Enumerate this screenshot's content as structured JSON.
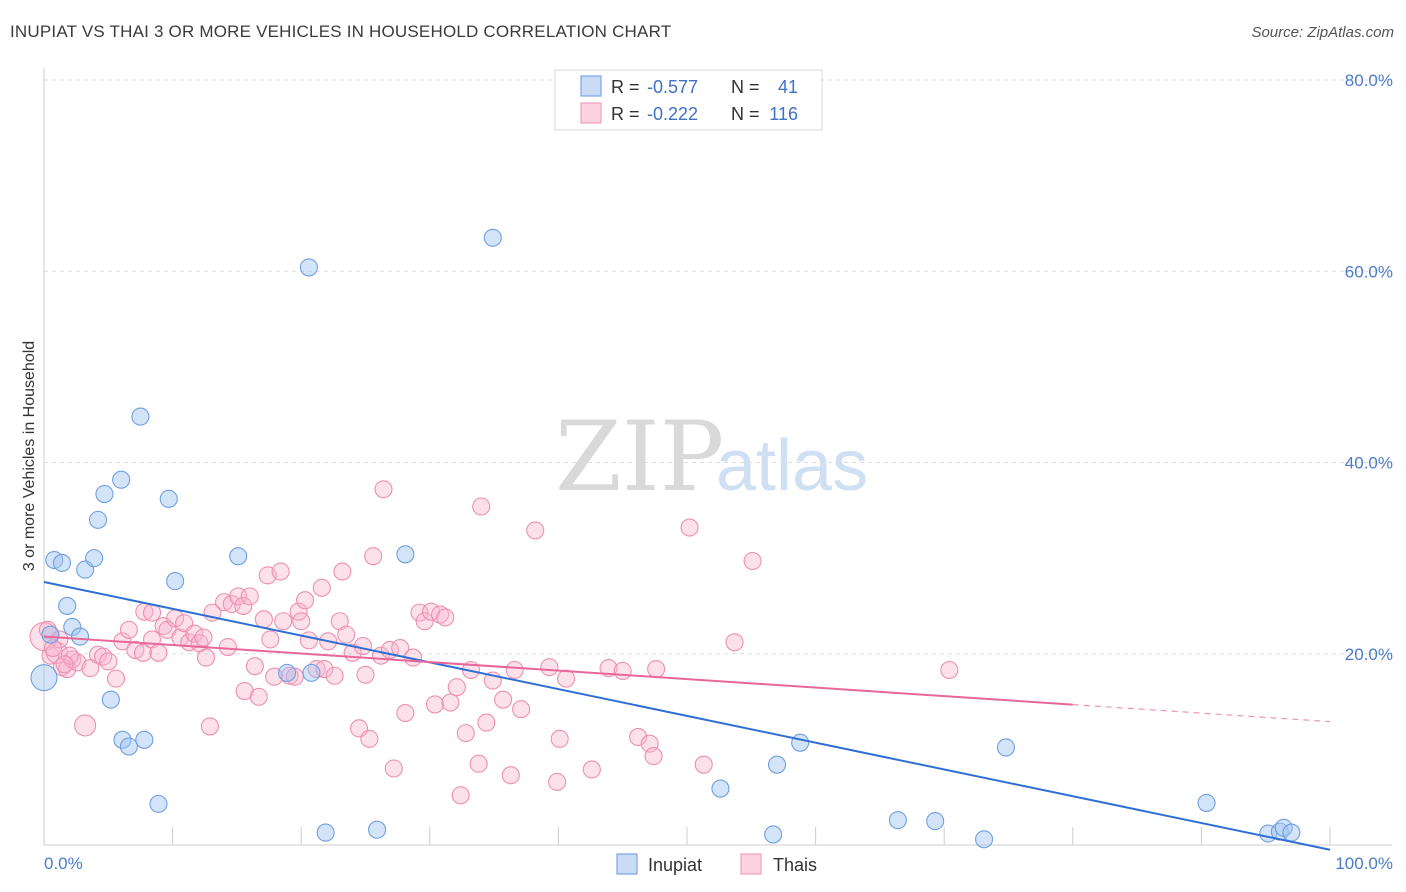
{
  "title": "INUPIAT VS THAI 3 OR MORE VEHICLES IN HOUSEHOLD CORRELATION CHART",
  "source": "Source: ZipAtlas.com",
  "watermark": {
    "part1": "ZIP",
    "part2": "atlas"
  },
  "legend_top": {
    "rows": [
      {
        "series": "Inupiat",
        "r_label": "R =",
        "r_value": "-0.577",
        "n_label": "N =",
        "n_value": "41",
        "color": "#7aa6e8"
      },
      {
        "series": "Thais",
        "r_label": "R =",
        "r_value": "-0.222",
        "n_label": "N =",
        "n_value": "116",
        "color": "#f4a0ba"
      }
    ]
  },
  "legend_bottom": [
    "Inupiat",
    "Thais"
  ],
  "chart_data": {
    "type": "scatter",
    "title": "INUPIAT VS THAI 3 OR MORE VEHICLES IN HOUSEHOLD CORRELATION CHART",
    "xlabel": "",
    "ylabel": "3 or more Vehicles in Household",
    "xlim": [
      0,
      100
    ],
    "ylim": [
      0,
      80
    ],
    "x_tick_labels": [
      "0.0%",
      "100.0%"
    ],
    "y_ticks": [
      20,
      40,
      60,
      80
    ],
    "y_tick_labels": [
      "20.0%",
      "40.0%",
      "60.0%",
      "80.0%"
    ],
    "grid": true,
    "colors": {
      "Inupiat": "#7aa6e8",
      "Thais": "#f4a0ba",
      "Inupiat_line": "#2f6fd4",
      "Thais_line": "#e8679a"
    },
    "series": [
      {
        "name": "Inupiat",
        "trend": {
          "x0": 0,
          "y0": 27.5,
          "x1": 100,
          "y1": -0.5,
          "solid_to": 100
        },
        "points": [
          [
            0,
            17.5
          ],
          [
            0.8,
            29.8
          ],
          [
            1.4,
            29.5
          ],
          [
            1.8,
            25
          ],
          [
            2.2,
            22.8
          ],
          [
            2.8,
            21.8
          ],
          [
            3.2,
            28.8
          ],
          [
            3.9,
            30
          ],
          [
            4.2,
            34
          ],
          [
            4.7,
            36.7
          ],
          [
            5.2,
            15.2
          ],
          [
            6,
            38.2
          ],
          [
            6.1,
            11
          ],
          [
            6.6,
            10.3
          ],
          [
            7.5,
            44.8
          ],
          [
            7.8,
            11
          ],
          [
            8.9,
            4.3
          ],
          [
            9.7,
            36.2
          ],
          [
            10.2,
            27.6
          ],
          [
            20.6,
            60.4
          ],
          [
            34.9,
            63.5
          ],
          [
            15.1,
            30.2
          ],
          [
            18.9,
            18
          ],
          [
            21.9,
            1.3
          ],
          [
            20.8,
            18
          ],
          [
            25.9,
            1.6
          ],
          [
            28.1,
            30.4
          ],
          [
            52.6,
            5.9
          ],
          [
            56.7,
            1.1
          ],
          [
            57,
            8.4
          ],
          [
            58.8,
            10.7
          ],
          [
            66.4,
            2.6
          ],
          [
            69.3,
            2.5
          ],
          [
            73.1,
            0.6
          ],
          [
            74.8,
            10.2
          ],
          [
            90.4,
            4.4
          ],
          [
            95.2,
            1.2
          ],
          [
            96.1,
            1.4
          ],
          [
            96.4,
            1.8
          ],
          [
            97,
            1.3
          ],
          [
            0.5,
            22
          ]
        ]
      },
      {
        "name": "Thais",
        "trend": {
          "x0": 0,
          "y0": 21.8,
          "x1": 100,
          "y1": 12.9,
          "solid_to": 80
        },
        "points": [
          [
            0,
            21.8
          ],
          [
            0.5,
            19.8
          ],
          [
            1,
            20.1
          ],
          [
            1.4,
            18.6
          ],
          [
            1.8,
            18.4
          ],
          [
            2.2,
            19.4
          ],
          [
            2.6,
            19.1
          ],
          [
            3.2,
            12.5
          ],
          [
            3.6,
            18.5
          ],
          [
            4.2,
            19.9
          ],
          [
            4.6,
            19.7
          ],
          [
            5,
            19.2
          ],
          [
            5.6,
            17.4
          ],
          [
            6.1,
            21.3
          ],
          [
            6.6,
            22.5
          ],
          [
            7.1,
            20.4
          ],
          [
            7.7,
            20.1
          ],
          [
            7.8,
            24.4
          ],
          [
            8.4,
            21.5
          ],
          [
            8.4,
            24.3
          ],
          [
            8.9,
            20.1
          ],
          [
            9.3,
            22.9
          ],
          [
            9.6,
            22.5
          ],
          [
            10.2,
            23.7
          ],
          [
            10.6,
            21.7
          ],
          [
            10.9,
            23.2
          ],
          [
            11.3,
            21.2
          ],
          [
            11.7,
            22.1
          ],
          [
            12.1,
            21.1
          ],
          [
            12.4,
            21.7
          ],
          [
            12.6,
            19.6
          ],
          [
            12.9,
            12.4
          ],
          [
            13.1,
            24.3
          ],
          [
            14,
            25.4
          ],
          [
            14.3,
            20.7
          ],
          [
            14.6,
            25.2
          ],
          [
            15.1,
            26
          ],
          [
            15.5,
            25
          ],
          [
            15.6,
            16.1
          ],
          [
            16,
            26
          ],
          [
            16.4,
            18.7
          ],
          [
            16.7,
            15.5
          ],
          [
            17.1,
            23.6
          ],
          [
            17.4,
            28.2
          ],
          [
            17.6,
            21.5
          ],
          [
            17.9,
            17.6
          ],
          [
            18.4,
            28.6
          ],
          [
            18.6,
            23.4
          ],
          [
            19.1,
            17.7
          ],
          [
            19.5,
            17.6
          ],
          [
            19.8,
            24.4
          ],
          [
            20,
            23.4
          ],
          [
            20.3,
            25.6
          ],
          [
            20.6,
            21.4
          ],
          [
            21.2,
            18.4
          ],
          [
            21.6,
            26.9
          ],
          [
            21.8,
            18.4
          ],
          [
            22.1,
            21.3
          ],
          [
            22.6,
            17.7
          ],
          [
            23,
            23.4
          ],
          [
            23.2,
            28.6
          ],
          [
            23.5,
            22
          ],
          [
            24,
            20.1
          ],
          [
            24.5,
            12.2
          ],
          [
            24.8,
            20.8
          ],
          [
            25,
            17.8
          ],
          [
            25.3,
            11.1
          ],
          [
            25.6,
            30.2
          ],
          [
            26.2,
            19.8
          ],
          [
            26.4,
            37.2
          ],
          [
            26.9,
            20.4
          ],
          [
            27.2,
            8
          ],
          [
            27.7,
            20.6
          ],
          [
            28.1,
            13.8
          ],
          [
            28.7,
            19.6
          ],
          [
            29.2,
            24.3
          ],
          [
            29.6,
            23.4
          ],
          [
            30.1,
            24.4
          ],
          [
            30.4,
            14.7
          ],
          [
            30.8,
            24.1
          ],
          [
            31.2,
            23.8
          ],
          [
            31.6,
            14.9
          ],
          [
            32.1,
            16.5
          ],
          [
            32.4,
            5.2
          ],
          [
            32.8,
            11.7
          ],
          [
            33.2,
            18.3
          ],
          [
            33.8,
            8.5
          ],
          [
            34,
            35.4
          ],
          [
            34.4,
            12.8
          ],
          [
            34.9,
            17.2
          ],
          [
            35.7,
            15.2
          ],
          [
            36.3,
            7.3
          ],
          [
            36.6,
            18.3
          ],
          [
            37.1,
            14.2
          ],
          [
            38.2,
            32.9
          ],
          [
            39.3,
            18.6
          ],
          [
            39.9,
            6.6
          ],
          [
            40.1,
            11.1
          ],
          [
            40.6,
            17.4
          ],
          [
            42.6,
            7.9
          ],
          [
            43.9,
            18.5
          ],
          [
            45,
            18.2
          ],
          [
            46.2,
            11.3
          ],
          [
            47.1,
            10.6
          ],
          [
            47.4,
            9.3
          ],
          [
            47.6,
            18.4
          ],
          [
            50.2,
            33.2
          ],
          [
            51.3,
            8.4
          ],
          [
            53.7,
            21.2
          ],
          [
            55.1,
            29.7
          ],
          [
            70.4,
            18.3
          ],
          [
            0.3,
            22.5
          ],
          [
            1.2,
            21.5
          ],
          [
            2,
            19.8
          ],
          [
            1.6,
            18.9
          ],
          [
            0.7,
            20.6
          ]
        ]
      }
    ]
  }
}
